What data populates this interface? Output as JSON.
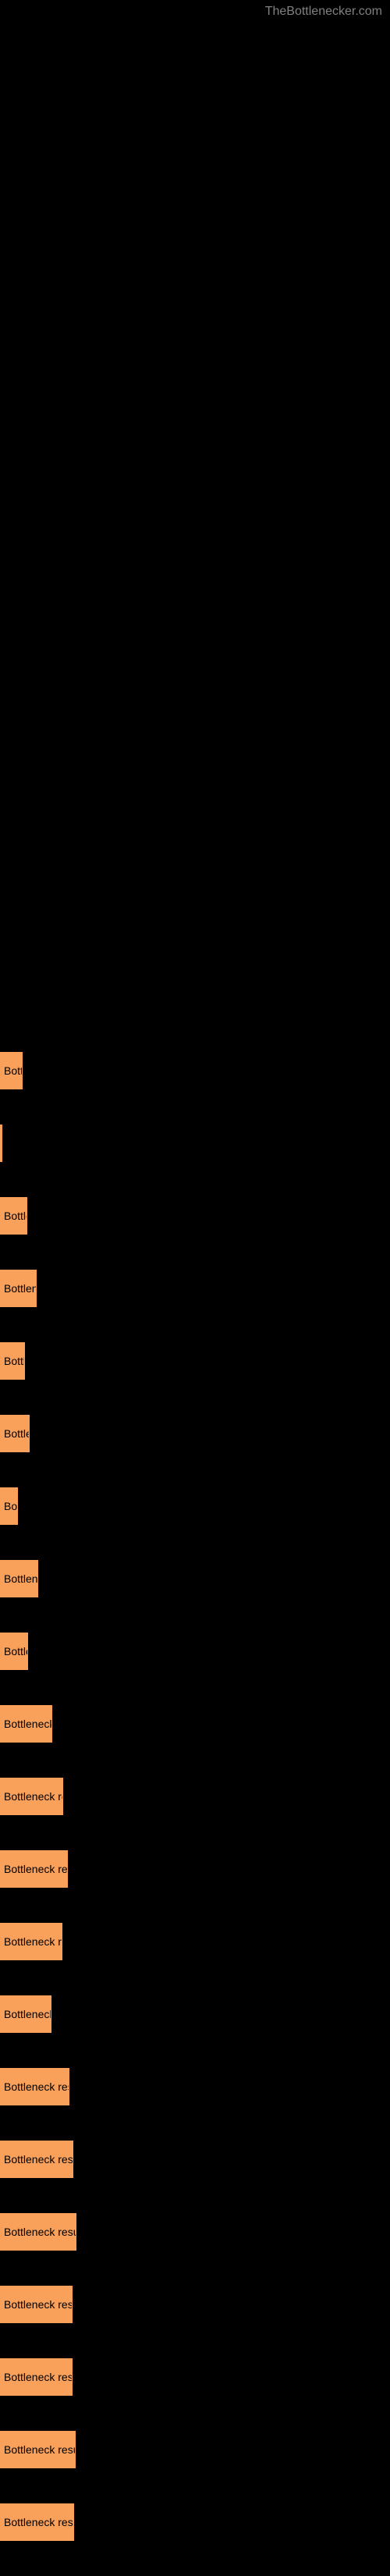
{
  "header": {
    "site_name": "TheBottlenecker.com"
  },
  "chart": {
    "bar_color": "#f9a05b",
    "background_color": "#000000",
    "label_text": "Bottleneck result",
    "label_color": "#000000",
    "label_fontsize": 14,
    "bars": [
      {
        "width": 29,
        "label": "Bott"
      },
      {
        "width": 3,
        "label": ""
      },
      {
        "width": 35,
        "label": "Bottle"
      },
      {
        "width": 47,
        "label": "Bottlene"
      },
      {
        "width": 32,
        "label": "Bottl"
      },
      {
        "width": 38,
        "label": "Bottler"
      },
      {
        "width": 23,
        "label": "Bo"
      },
      {
        "width": 49,
        "label": "Bottlenec"
      },
      {
        "width": 36,
        "label": "Bottle"
      },
      {
        "width": 67,
        "label": "Bottleneck re"
      },
      {
        "width": 81,
        "label": "Bottleneck resu"
      },
      {
        "width": 87,
        "label": "Bottleneck results"
      },
      {
        "width": 80,
        "label": "Bottleneck resu"
      },
      {
        "width": 66,
        "label": "Bottleneck r"
      },
      {
        "width": 89,
        "label": "Bottleneck results"
      },
      {
        "width": 94,
        "label": "Bottleneck result"
      },
      {
        "width": 98,
        "label": "Bottleneck result"
      },
      {
        "width": 93,
        "label": "Bottleneck result"
      },
      {
        "width": 93,
        "label": "Bottleneck result"
      },
      {
        "width": 97,
        "label": "Bottleneck result"
      },
      {
        "width": 95,
        "label": "Bottleneck result"
      }
    ]
  }
}
